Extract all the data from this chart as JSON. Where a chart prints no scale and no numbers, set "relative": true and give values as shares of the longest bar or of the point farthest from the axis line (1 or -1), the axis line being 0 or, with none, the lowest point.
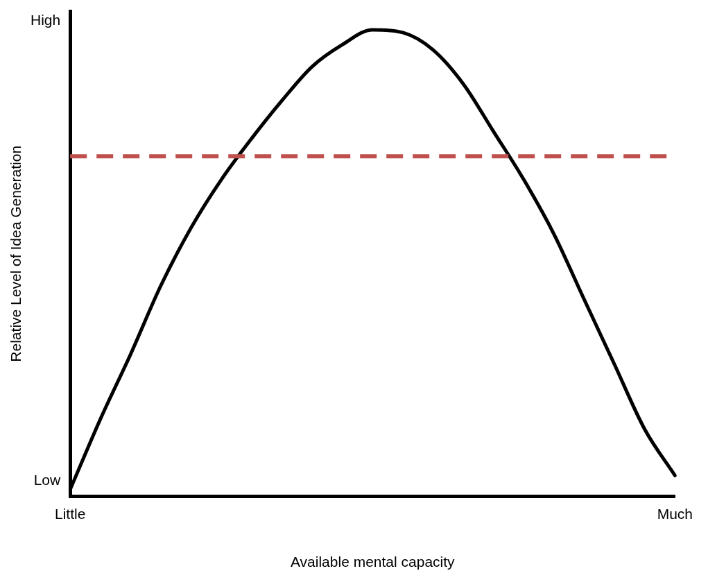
{
  "chart_data": {
    "type": "line",
    "xlabel": "Available mental capacity",
    "ylabel": "Relative Level of Idea Generation",
    "relative": true,
    "categories": [
      "Little",
      null,
      null,
      null,
      null,
      null,
      null,
      null,
      null,
      null,
      null,
      null,
      null,
      null,
      null,
      null,
      null,
      null,
      null,
      null,
      "Much"
    ],
    "series": [
      {
        "color": "#000000",
        "values": [
          0.015,
          0.166,
          0.305,
          0.452,
          0.576,
          0.679,
          0.767,
          0.848,
          0.921,
          0.968,
          1.0,
          0.994,
          0.957,
          0.884,
          0.782,
          0.679,
          0.562,
          0.422,
          0.283,
          0.144,
          0.045
        ]
      }
    ],
    "annotations": [
      "Low",
      "High"
    ],
    "ref_lines": [
      {
        "axis": "y",
        "value": 0.729,
        "color": "#c0504d",
        "line_style": "dashed"
      }
    ],
    "grid": false,
    "legend": false,
    "marker": "none",
    "line_style": "solid"
  }
}
